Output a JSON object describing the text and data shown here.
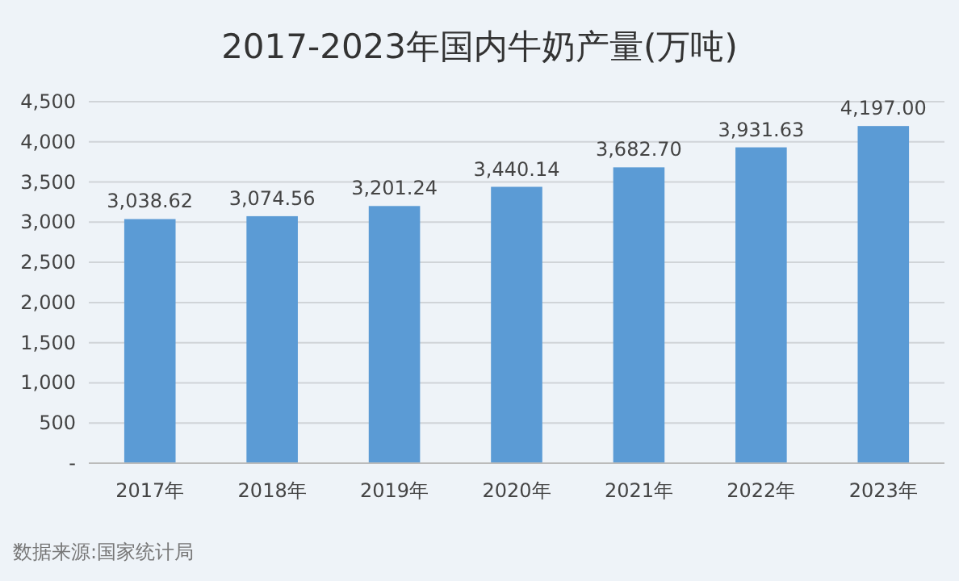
{
  "chart_data": {
    "type": "bar",
    "title": "2017-2023年国内牛奶产量(万吨)",
    "categories": [
      "2017年",
      "2018年",
      "2019年",
      "2020年",
      "2021年",
      "2022年",
      "2023年"
    ],
    "values": [
      3038.62,
      3074.56,
      3201.24,
      3440.14,
      3682.7,
      3931.63,
      4197.0
    ],
    "value_labels": [
      "3,038.62",
      "3,074.56",
      "3,201.24",
      "3,440.14",
      "3,682.70",
      "3,931.63",
      "4,197.00"
    ],
    "color": "#5b9bd5",
    "ylim": [
      0,
      4500
    ],
    "yticks": [
      {
        "value": 0,
        "label": "-"
      },
      {
        "value": 500,
        "label": "500"
      },
      {
        "value": 1000,
        "label": "1,000"
      },
      {
        "value": 1500,
        "label": "1,500"
      },
      {
        "value": 2000,
        "label": "2,000"
      },
      {
        "value": 2500,
        "label": "2,500"
      },
      {
        "value": 3000,
        "label": "3,000"
      },
      {
        "value": 3500,
        "label": "3,500"
      },
      {
        "value": 4000,
        "label": "4,000"
      },
      {
        "value": 4500,
        "label": "4,500"
      }
    ],
    "grid": "y",
    "annotations": [
      "数据来源:国家统计局"
    ]
  }
}
